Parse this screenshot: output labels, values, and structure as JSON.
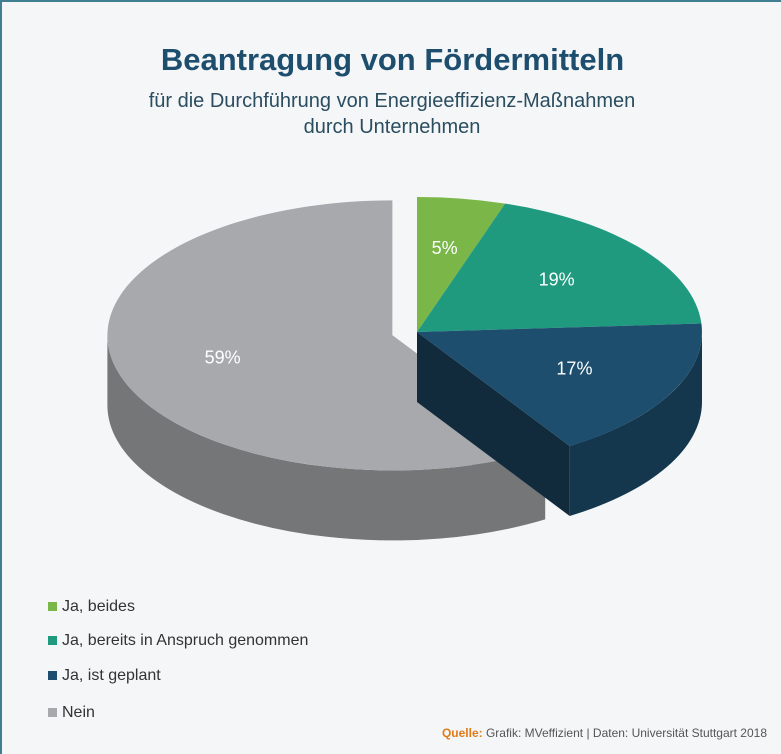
{
  "chart_data": {
    "type": "pie3d",
    "title": "Beantragung von Fördermitteln",
    "subtitle": "für die Durchführung von Energieeffizienz-Maßnahmen durch Unternehmen",
    "categories": [
      "Ja, beides",
      "Ja, bereits in Anspruch genommen",
      "Ja, ist geplant",
      "Nein"
    ],
    "values": [
      5,
      19,
      17,
      59
    ],
    "value_labels": [
      "5%",
      "19%",
      "17%",
      "59%"
    ],
    "colors": [
      "#7ab648",
      "#1f9a7e",
      "#1e4e6e",
      "#a7a9ac"
    ],
    "explode": [
      0,
      0,
      0,
      0.09
    ],
    "legend": "bottom-left",
    "source_label": "Quelle:",
    "source": "Grafik: MVeffizient | Daten: Universität Stuttgart 2018"
  }
}
